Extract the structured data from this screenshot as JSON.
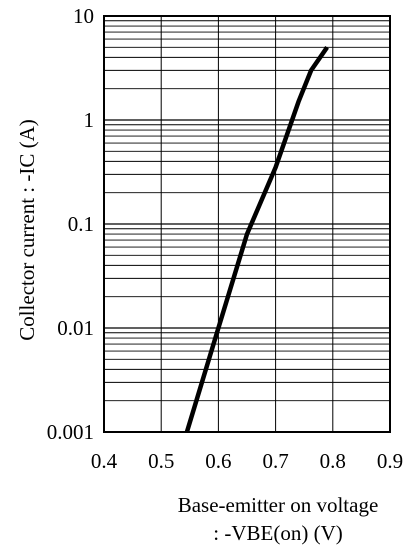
{
  "chart_data": {
    "type": "line",
    "title": "",
    "xlabel_lines": [
      "Base-emitter on voltage",
      ": -VBE(on) (V)"
    ],
    "ylabel": "Collector current : -IC (A)",
    "xscale": "linear",
    "yscale": "log",
    "xlim": [
      0.4,
      0.9
    ],
    "ylim": [
      0.001,
      10
    ],
    "x_ticks": [
      0.4,
      0.5,
      0.6,
      0.7,
      0.8,
      0.9
    ],
    "x_tick_labels": [
      "0.4",
      "0.5",
      "0.6",
      "0.7",
      "0.8",
      "0.9"
    ],
    "y_ticks": [
      0.001,
      0.01,
      0.1,
      1,
      10
    ],
    "y_tick_labels": [
      "0.001",
      "0.01",
      "0.1",
      "1",
      "10"
    ],
    "grid": {
      "major": true,
      "minor_log": true,
      "x_vertical": true
    },
    "series": [
      {
        "color": "#000000",
        "points": [
          {
            "x": 0.545,
            "y": 0.001
          },
          {
            "x": 0.6,
            "y": 0.01
          },
          {
            "x": 0.65,
            "y": 0.08
          },
          {
            "x": 0.7,
            "y": 0.35
          },
          {
            "x": 0.74,
            "y": 1.5
          },
          {
            "x": 0.762,
            "y": 3.0
          },
          {
            "x": 0.79,
            "y": 5.0
          }
        ]
      }
    ]
  }
}
